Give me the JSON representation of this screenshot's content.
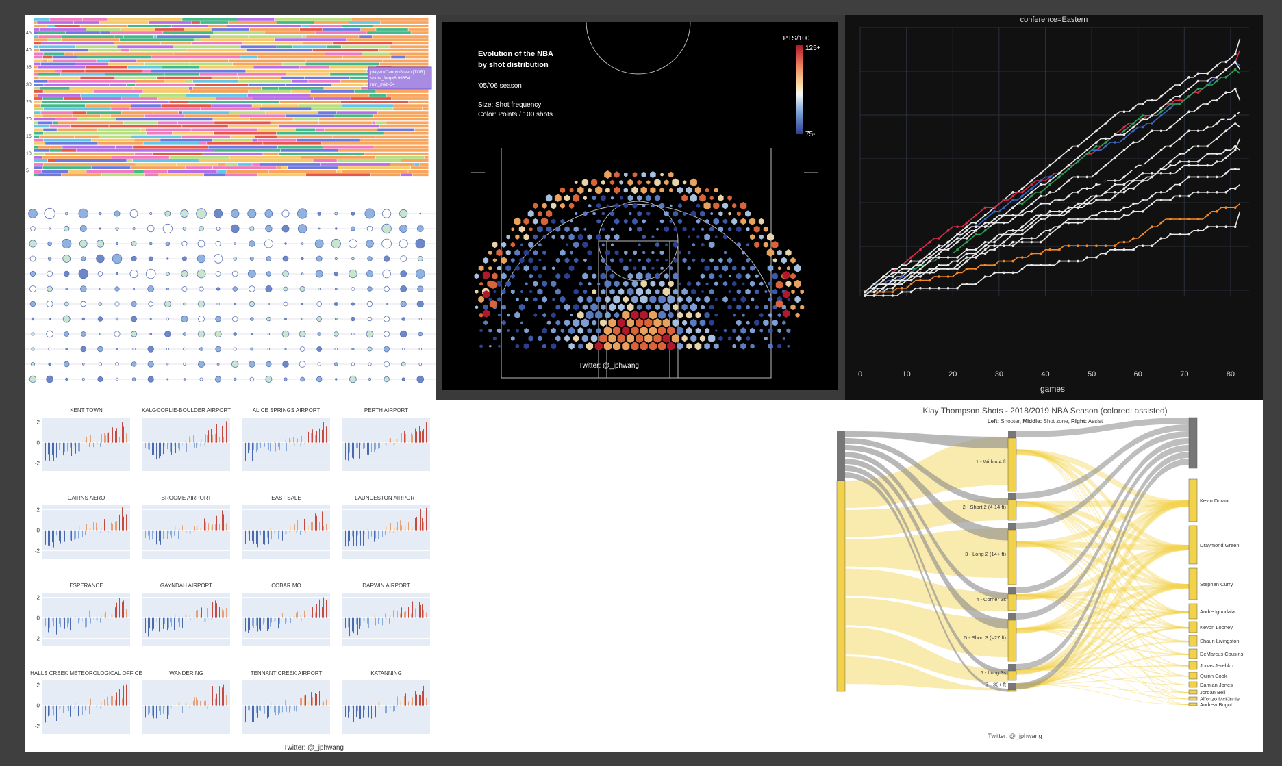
{
  "chart_data": [
    {
      "type": "bar",
      "name": "stacked-shot-distribution",
      "y_ticks": [
        "45",
        "40",
        "35",
        "30",
        "25",
        "20",
        "15",
        "10",
        "5"
      ],
      "tooltip": [
        "player=Danny Green [TOR]",
        "shots_freq=8.99654",
        "min_mid=34"
      ],
      "colors": [
        "#6c7ae0",
        "#e6574a",
        "#45b88a",
        "#b66ee8",
        "#f4a15c",
        "#63c6e4",
        "#ef7ac0",
        "#b7df82",
        "#f7c96a",
        "#f8a55e"
      ]
    },
    {
      "type": "scatter",
      "name": "bubble-grid",
      "rows": 12,
      "cols": 24
    },
    {
      "type": "heatmap",
      "name": "hex-shot-chart",
      "title_lines": [
        "Evolution of the NBA",
        "by shot distribution"
      ],
      "season": "'05/'06 season",
      "size_label": "Size: Shot frequency",
      "color_label": "Color: Points / 100 shots",
      "colorbar_title": "PTS/100",
      "colorbar_max": "125+",
      "colorbar_min": "75-",
      "credit": "Twitter: @_jphwang"
    },
    {
      "type": "line",
      "name": "conference-standings",
      "title": "conference=Eastern",
      "xlabel": "games",
      "x_ticks": [
        "0",
        "10",
        "20",
        "30",
        "40",
        "50",
        "60",
        "70",
        "80"
      ],
      "xlim": [
        0,
        84
      ],
      "series": [
        {
          "color": "#e8e8e8",
          "final": 67
        },
        {
          "color": "#dc2a4b",
          "final": 64
        },
        {
          "color": "#3b68c9",
          "final": 60
        },
        {
          "color": "#2e9e52",
          "final": 58
        },
        {
          "color": "#e8e8e8",
          "final": 59
        },
        {
          "color": "#e8e8e8",
          "final": 51
        },
        {
          "color": "#e8e8e8",
          "final": 48
        },
        {
          "color": "#111111",
          "final": 45
        },
        {
          "color": "#e8e8e8",
          "final": 44
        },
        {
          "color": "#e8e8e8",
          "final": 41
        },
        {
          "color": "#e8e8e8",
          "final": 38
        },
        {
          "color": "#e8e8e8",
          "final": 33
        },
        {
          "color": "#e8e8e8",
          "final": 29
        },
        {
          "color": "#f28a2a",
          "final": 24
        },
        {
          "color": "#e8e8e8",
          "final": 22
        }
      ]
    },
    {
      "type": "bar",
      "name": "weather-anomaly-small-multiples",
      "y_ticks": [
        "2",
        "0",
        "-2"
      ],
      "stations": [
        "KENT TOWN",
        "KALGOORLIE-BOULDER AIRPORT",
        "ALICE SPRINGS AIRPORT",
        "PERTH AIRPORT",
        "CAIRNS AERO",
        "BROOME AIRPORT",
        "EAST SALE",
        "LAUNCESTON AIRPORT",
        "ESPERANCE",
        "GAYNDAH AIRPORT",
        "COBAR MO",
        "DARWIN AIRPORT",
        "HALLS CREEK METEOROLOGICAL OFFICE",
        "WANDERING",
        "TENNANT CREEK AIRPORT",
        "KATANNING"
      ],
      "credit": "Twitter: @_jphwang"
    },
    {
      "type": "table",
      "name": "sankey",
      "title": "Klay Thompson Shots - 2018/2019 NBA Season (colored: assisted)",
      "subtitle_parts": [
        "Left:",
        " Shooter, ",
        "Middle:",
        " Shot zone, ",
        "Right:",
        " Assist"
      ],
      "zones": [
        {
          "label": "1 - Within 4 ft",
          "y0": 0,
          "h": 88
        },
        {
          "label": "2 - Short 2 (4-14 ft)",
          "y0": 90,
          "h": 40
        },
        {
          "label": "3 - Long 2 (14+ ft)",
          "y0": 134,
          "h": 90
        },
        {
          "label": "4 - Corner 3s",
          "y0": 228,
          "h": 34
        },
        {
          "label": "5 - Short 3 (<27 ft)",
          "y0": 266,
          "h": 70
        },
        {
          "label": "6 - Long 3s",
          "y0": 340,
          "h": 24
        },
        {
          "label": "7 - 30+ ft",
          "y0": 368,
          "h": 3
        }
      ],
      "assists": [
        {
          "label": "Kevin Durant",
          "y0": 0,
          "h": 62
        },
        {
          "label": "Draymond Green",
          "y0": 68,
          "h": 56
        },
        {
          "label": "Stephen Curry",
          "y0": 130,
          "h": 46
        },
        {
          "label": "Andre Iguodala",
          "y0": 182,
          "h": 22
        },
        {
          "label": "Kevon Looney",
          "y0": 208,
          "h": 16
        },
        {
          "label": "Shaun Livingston",
          "y0": 228,
          "h": 16
        },
        {
          "label": "DeMarcus Cousins",
          "y0": 248,
          "h": 14
        },
        {
          "label": "Jonas Jerebko",
          "y0": 266,
          "h": 12
        },
        {
          "label": "Quinn Cook",
          "y0": 282,
          "h": 10
        },
        {
          "label": "Damian Jones",
          "y0": 296,
          "h": 8
        },
        {
          "label": "Jordan Bell",
          "y0": 308,
          "h": 6
        },
        {
          "label": "Alfonzo McKinnie",
          "y0": 318,
          "h": 5
        },
        {
          "label": "Andrew Bogut",
          "y0": 327,
          "h": 4
        }
      ],
      "credit": "Twitter: @_jphwang"
    }
  ]
}
